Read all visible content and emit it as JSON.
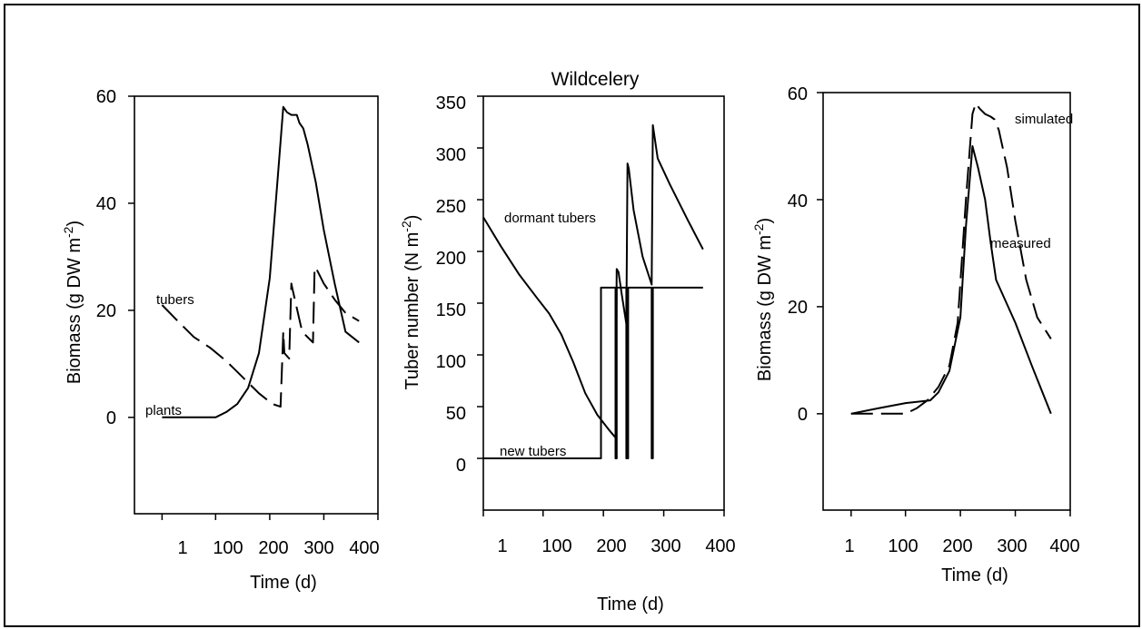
{
  "chart_data": [
    {
      "type": "line",
      "title": "",
      "xlabel": "Time (d)",
      "ylabel": "Biomass (g DW m^-2)",
      "xlim": [
        -50,
        400
      ],
      "ylim": [
        -18,
        60
      ],
      "xticks": [
        1,
        100,
        200,
        300,
        400
      ],
      "yticks": [
        0,
        20,
        40,
        60
      ],
      "grid": false,
      "legend": "none",
      "series": [
        {
          "name": "plants",
          "style": "solid",
          "x": [
            1,
            100,
            120,
            140,
            160,
            180,
            200,
            215,
            225,
            232,
            240,
            250,
            255,
            262,
            270,
            285,
            300,
            320,
            340,
            365
          ],
          "y": [
            0,
            0,
            1,
            2.5,
            5.5,
            12,
            26,
            45,
            58,
            57,
            56.5,
            56.5,
            55,
            54,
            51,
            44,
            35,
            25,
            16,
            14
          ]
        },
        {
          "name": "tubers",
          "style": "dashed",
          "x": [
            1,
            30,
            60,
            90,
            120,
            150,
            180,
            205,
            220,
            225,
            227,
            236,
            240,
            242,
            260,
            280,
            283,
            285,
            300,
            320,
            340,
            365
          ],
          "y": [
            21,
            18,
            15,
            13,
            10.5,
            7.5,
            4.5,
            2.5,
            2,
            16,
            12,
            11,
            25,
            24,
            16,
            14,
            28,
            28,
            25,
            22,
            19.5,
            18
          ]
        }
      ],
      "annotations": [
        "tubers",
        "plants"
      ]
    },
    {
      "type": "line",
      "title": "Wildcelery",
      "xlabel": "Time (d)",
      "ylabel": "Tuber number (N m^-2)",
      "xlim": [
        1,
        400
      ],
      "ylim": [
        -50,
        350
      ],
      "xticks": [
        1,
        100,
        200,
        300,
        400
      ],
      "yticks": [
        0,
        50,
        100,
        150,
        200,
        250,
        300,
        350
      ],
      "grid": false,
      "legend": "none",
      "series": [
        {
          "name": "dormant tubers",
          "style": "solid",
          "x": [
            1,
            30,
            60,
            90,
            110,
            130,
            150,
            170,
            190,
            210,
            220,
            222,
            225,
            230,
            238,
            240,
            242,
            250,
            265,
            280,
            282,
            290,
            310,
            340,
            365
          ],
          "y": [
            233,
            205,
            178,
            155,
            140,
            120,
            93,
            63,
            42,
            27,
            20,
            183,
            180,
            160,
            130,
            285,
            280,
            240,
            195,
            168,
            322,
            290,
            265,
            230,
            202
          ]
        },
        {
          "name": "new tubers",
          "style": "solid",
          "x": [
            1,
            196,
            196,
            220,
            220,
            222,
            222,
            238,
            238,
            241,
            241,
            280,
            280,
            282,
            282,
            365
          ],
          "y": [
            0,
            0,
            165,
            165,
            0,
            0,
            165,
            165,
            0,
            0,
            165,
            165,
            0,
            0,
            165,
            165
          ]
        }
      ],
      "annotations": [
        "dormant tubers",
        "new tubers"
      ]
    },
    {
      "type": "line",
      "title": "",
      "xlabel": "Time (d)",
      "ylabel": "Biomass (g DW m^-2)",
      "xlim": [
        -50,
        400
      ],
      "ylim": [
        -18,
        60
      ],
      "xticks": [
        1,
        100,
        200,
        300,
        400
      ],
      "yticks": [
        0,
        20,
        40,
        60
      ],
      "grid": false,
      "legend": "none",
      "series": [
        {
          "name": "measured",
          "style": "solid",
          "x": [
            1,
            50,
            100,
            145,
            160,
            180,
            200,
            210,
            222,
            232,
            245,
            255,
            265,
            300,
            330,
            365
          ],
          "y": [
            0,
            1,
            2,
            2.5,
            4,
            8,
            18,
            35,
            50,
            46,
            40,
            32,
            25,
            17,
            9,
            0
          ]
        },
        {
          "name": "simulated",
          "style": "dashed",
          "x": [
            1,
            60,
            100,
            120,
            140,
            160,
            180,
            195,
            210,
            222,
            228,
            235,
            245,
            255,
            262,
            270,
            285,
            300,
            320,
            340,
            365
          ],
          "y": [
            0,
            0,
            0,
            1,
            2.5,
            5,
            9,
            17,
            40,
            56,
            58,
            57,
            56,
            55.5,
            55,
            53,
            46,
            36,
            25,
            18,
            14
          ]
        }
      ],
      "annotations": [
        "simulated",
        "measured"
      ]
    }
  ],
  "panels": [
    {
      "xlabel": "Time (d)",
      "ylabel_main": "Biomass (g DW m",
      "ylabel_sup": "-2",
      "ylabel_end": ")",
      "tick_x": [
        "1",
        "100",
        "200",
        "300",
        "400"
      ],
      "tick_y": [
        "0",
        "20",
        "40",
        "60"
      ],
      "labels": {
        "a": "tubers",
        "b": "plants"
      }
    },
    {
      "title": "Wildcelery",
      "xlabel": "Time (d)",
      "ylabel_main": "Tuber number (N m",
      "ylabel_sup": "-2",
      "ylabel_end": ")",
      "tick_x": [
        "1",
        "100",
        "200",
        "300",
        "400"
      ],
      "tick_y": [
        "0",
        "50",
        "100",
        "150",
        "200",
        "250",
        "300",
        "350"
      ],
      "labels": {
        "a": "dormant tubers",
        "b": "new tubers"
      }
    },
    {
      "xlabel": "Time (d)",
      "ylabel_main": "Biomass (g DW m",
      "ylabel_sup": "-2",
      "ylabel_end": ")",
      "tick_x": [
        "1",
        "100",
        "200",
        "300",
        "400"
      ],
      "tick_y": [
        "0",
        "20",
        "40",
        "60"
      ],
      "labels": {
        "a": "simulated",
        "b": "measured"
      }
    }
  ]
}
